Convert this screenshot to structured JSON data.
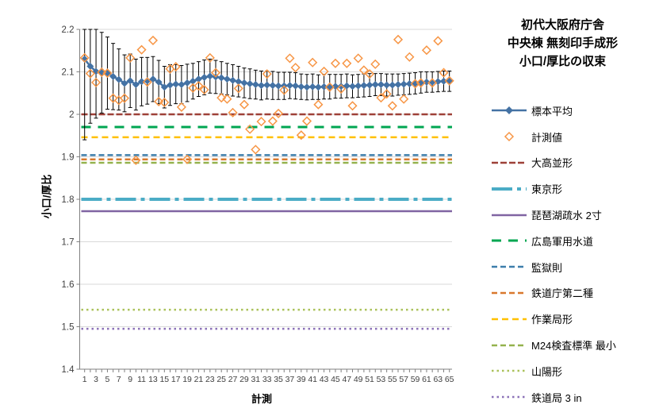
{
  "title": {
    "line1": "初代大阪府庁舎",
    "line2": "中央棟 無刻印手成形",
    "line3": "小口/厚比の収束"
  },
  "axes": {
    "y_label": "小口/厚比",
    "x_label": "計測",
    "y_tick_labels": [
      "2.2",
      "2.1",
      "2",
      "1.9",
      "1.8",
      "1.7",
      "1.6",
      "1.5",
      "1.4"
    ],
    "y_tick_values": [
      2.2,
      2.1,
      2.0,
      1.9,
      1.8,
      1.7,
      1.6,
      1.5,
      1.4
    ],
    "x_tick_labels": [
      "1",
      "3",
      "5",
      "7",
      "9",
      "11",
      "13",
      "15",
      "17",
      "19",
      "21",
      "23",
      "25",
      "27",
      "29",
      "31",
      "33",
      "35",
      "37",
      "39",
      "41",
      "43",
      "45",
      "47",
      "49",
      "51",
      "53",
      "55",
      "57",
      "59",
      "61",
      "63",
      "65"
    ],
    "grid_color": "#d9d9d9",
    "axis_color": "#808080",
    "tick_text_color": "#404040"
  },
  "chart_data": {
    "type": "line",
    "title": "初代大阪府庁舎 中央棟 無刻印手成形 小口/厚比の収束",
    "xlabel": "計測",
    "ylabel": "小口/厚比",
    "xlim": [
      1,
      65
    ],
    "ylim": [
      1.4,
      2.2
    ],
    "grid": true,
    "legend_position": "right",
    "x": [
      1,
      2,
      3,
      4,
      5,
      6,
      7,
      8,
      9,
      10,
      11,
      12,
      13,
      14,
      15,
      16,
      17,
      18,
      19,
      20,
      21,
      22,
      23,
      24,
      25,
      26,
      27,
      28,
      29,
      30,
      31,
      32,
      33,
      34,
      35,
      36,
      37,
      38,
      39,
      40,
      41,
      42,
      43,
      44,
      45,
      46,
      47,
      48,
      49,
      50,
      51,
      52,
      53,
      54,
      55,
      56,
      57,
      58,
      59,
      60,
      61,
      62,
      63,
      64,
      65
    ],
    "series": [
      {
        "name": "標本平均",
        "type": "mean_line",
        "color": "#4472A4",
        "width": 2.5,
        "error_color": "#000000",
        "values": [
          2.13,
          2.113,
          2.101,
          2.098,
          2.097,
          2.089,
          2.082,
          2.073,
          2.079,
          2.07,
          2.077,
          2.079,
          2.083,
          2.076,
          2.064,
          2.069,
          2.071,
          2.07,
          2.074,
          2.078,
          2.083,
          2.087,
          2.09,
          2.088,
          2.086,
          2.083,
          2.08,
          2.077,
          2.074,
          2.072,
          2.07,
          2.068,
          2.069,
          2.068,
          2.067,
          2.067,
          2.068,
          2.067,
          2.065,
          2.064,
          2.065,
          2.064,
          2.065,
          2.065,
          2.066,
          2.066,
          2.067,
          2.066,
          2.067,
          2.068,
          2.069,
          2.07,
          2.07,
          2.069,
          2.069,
          2.07,
          2.071,
          2.072,
          2.073,
          2.075,
          2.076,
          2.076,
          2.077,
          2.078,
          2.078
        ],
        "error_halfwidth": [
          0.19,
          0.134,
          0.11,
          0.095,
          0.085,
          0.078,
          0.072,
          0.067,
          0.063,
          0.06,
          0.057,
          0.055,
          0.053,
          0.051,
          0.049,
          0.048,
          0.046,
          0.045,
          0.044,
          0.042,
          0.041,
          0.041,
          0.04,
          0.039,
          0.038,
          0.037,
          0.037,
          0.036,
          0.035,
          0.035,
          0.034,
          0.034,
          0.033,
          0.033,
          0.032,
          0.032,
          0.031,
          0.031,
          0.03,
          0.03,
          0.03,
          0.029,
          0.029,
          0.029,
          0.028,
          0.028,
          0.028,
          0.027,
          0.027,
          0.027,
          0.027,
          0.026,
          0.026,
          0.026,
          0.026,
          0.025,
          0.025,
          0.025,
          0.025,
          0.025,
          0.024,
          0.024,
          0.024,
          0.024,
          0.024
        ]
      },
      {
        "name": "計測値",
        "type": "scatter",
        "color": "#F79646",
        "width": 1.5,
        "values": [
          2.133,
          2.096,
          2.075,
          2.099,
          2.097,
          2.038,
          2.033,
          2.038,
          2.133,
          1.892,
          2.152,
          2.076,
          2.174,
          2.03,
          2.028,
          2.107,
          2.112,
          2.017,
          1.894,
          2.062,
          2.067,
          2.058,
          2.133,
          2.098,
          2.039,
          2.036,
          2.004,
          2.061,
          2.023,
          1.965,
          1.917,
          1.983,
          2.095,
          1.984,
          2.002,
          2.057,
          2.132,
          2.11,
          1.951,
          1.984,
          2.122,
          2.023,
          2.101,
          2.064,
          2.12,
          2.06,
          2.12,
          2.02,
          2.132,
          2.104,
          2.095,
          2.118,
          2.039,
          2.048,
          2.02,
          2.176,
          2.036,
          2.135,
          2.072,
          2.074,
          2.151,
          2.074,
          2.173,
          2.098,
          2.079
        ]
      },
      {
        "name": "大高並形",
        "type": "refline",
        "color": "#9E4138",
        "dash": "8 3",
        "width": 2.5,
        "value": 2.0
      },
      {
        "name": "東京形",
        "type": "refline",
        "color": "#4BACC6",
        "dash": "26 6 5 6",
        "width": 4,
        "value": 1.8
      },
      {
        "name": "琵琶湖疏水 2寸",
        "type": "refline",
        "color": "#8064A2",
        "dash": "",
        "width": 2.5,
        "value": 1.772
      },
      {
        "name": "広島軍用水道",
        "type": "refline",
        "color": "#00A651",
        "dash": "12 9",
        "width": 3,
        "value": 1.97
      },
      {
        "name": "監獄則",
        "type": "refline",
        "color": "#3D7EAB",
        "dash": "7 4",
        "width": 2.5,
        "value": 1.904
      },
      {
        "name": "鉄道庁第二種",
        "type": "refline",
        "color": "#D9782D",
        "dash": "7 4",
        "width": 2.5,
        "value": 1.894
      },
      {
        "name": "作業局形",
        "type": "refline",
        "color": "#FFC000",
        "dash": "8 5",
        "width": 2.5,
        "value": 1.946
      },
      {
        "name": "M24検査標準 最小",
        "type": "refline",
        "color": "#94B24D",
        "dash": "7 4",
        "width": 2.5,
        "value": 1.886
      },
      {
        "name": "山陽形",
        "type": "refline",
        "color": "#ABC25B",
        "dash": "2.5 4",
        "width": 2.5,
        "value": 1.54
      },
      {
        "name": "鉄道局 3 in",
        "type": "refline",
        "color": "#8C72B8",
        "dash": "2.5 4",
        "width": 2.5,
        "value": 1.495
      }
    ]
  }
}
